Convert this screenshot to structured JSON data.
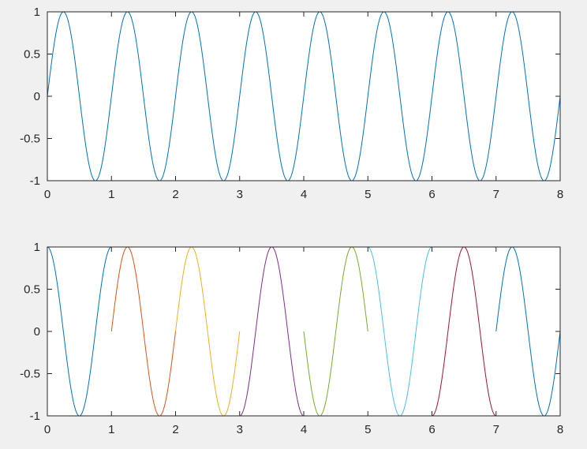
{
  "figure": {
    "background": "#f0f0f0"
  },
  "chart_data": [
    {
      "type": "line",
      "title": "",
      "xlabel": "",
      "ylabel": "",
      "xlim": [
        0,
        8
      ],
      "ylim": [
        -1,
        1
      ],
      "grid": false,
      "x_ticks": [
        "0",
        "1",
        "2",
        "3",
        "4",
        "5",
        "6",
        "7",
        "8"
      ],
      "y_ticks": [
        "1",
        "0.5",
        "0",
        "-0.5",
        "-1"
      ],
      "series": [
        {
          "function": "sin(2*pi*x)",
          "x_range": [
            0,
            8
          ],
          "color": "#0072BD"
        }
      ]
    },
    {
      "type": "line",
      "title": "",
      "xlabel": "",
      "ylabel": "",
      "xlim": [
        0,
        8
      ],
      "ylim": [
        -1,
        1
      ],
      "grid": false,
      "x_ticks": [
        "0",
        "1",
        "2",
        "3",
        "4",
        "5",
        "6",
        "7",
        "8"
      ],
      "y_ticks": [
        "1",
        "0.5",
        "0",
        "-0.5",
        "-1"
      ],
      "series": [
        {
          "function": "cos(2*pi*x)",
          "x_range": [
            0,
            1
          ],
          "color": "#0072BD"
        },
        {
          "function": "sin(2*pi*x)",
          "x_range": [
            1,
            2
          ],
          "color": "#D95319"
        },
        {
          "function": "sin(2*pi*x)",
          "x_range": [
            2,
            3
          ],
          "color": "#EDB120"
        },
        {
          "function": "-cos(2*pi*x)",
          "x_range": [
            3,
            4
          ],
          "color": "#7E2F8E"
        },
        {
          "function": "-sin(2*pi*x)",
          "x_range": [
            4,
            5
          ],
          "color": "#77AC30"
        },
        {
          "function": "cos(2*pi*x)",
          "x_range": [
            5,
            6
          ],
          "color": "#4DBEEE"
        },
        {
          "function": "-cos(2*pi*x)",
          "x_range": [
            6,
            7
          ],
          "color": "#A2142F"
        },
        {
          "function": "sin(2*pi*x)",
          "x_range": [
            7,
            8
          ],
          "color": "#0072BD"
        }
      ]
    }
  ]
}
